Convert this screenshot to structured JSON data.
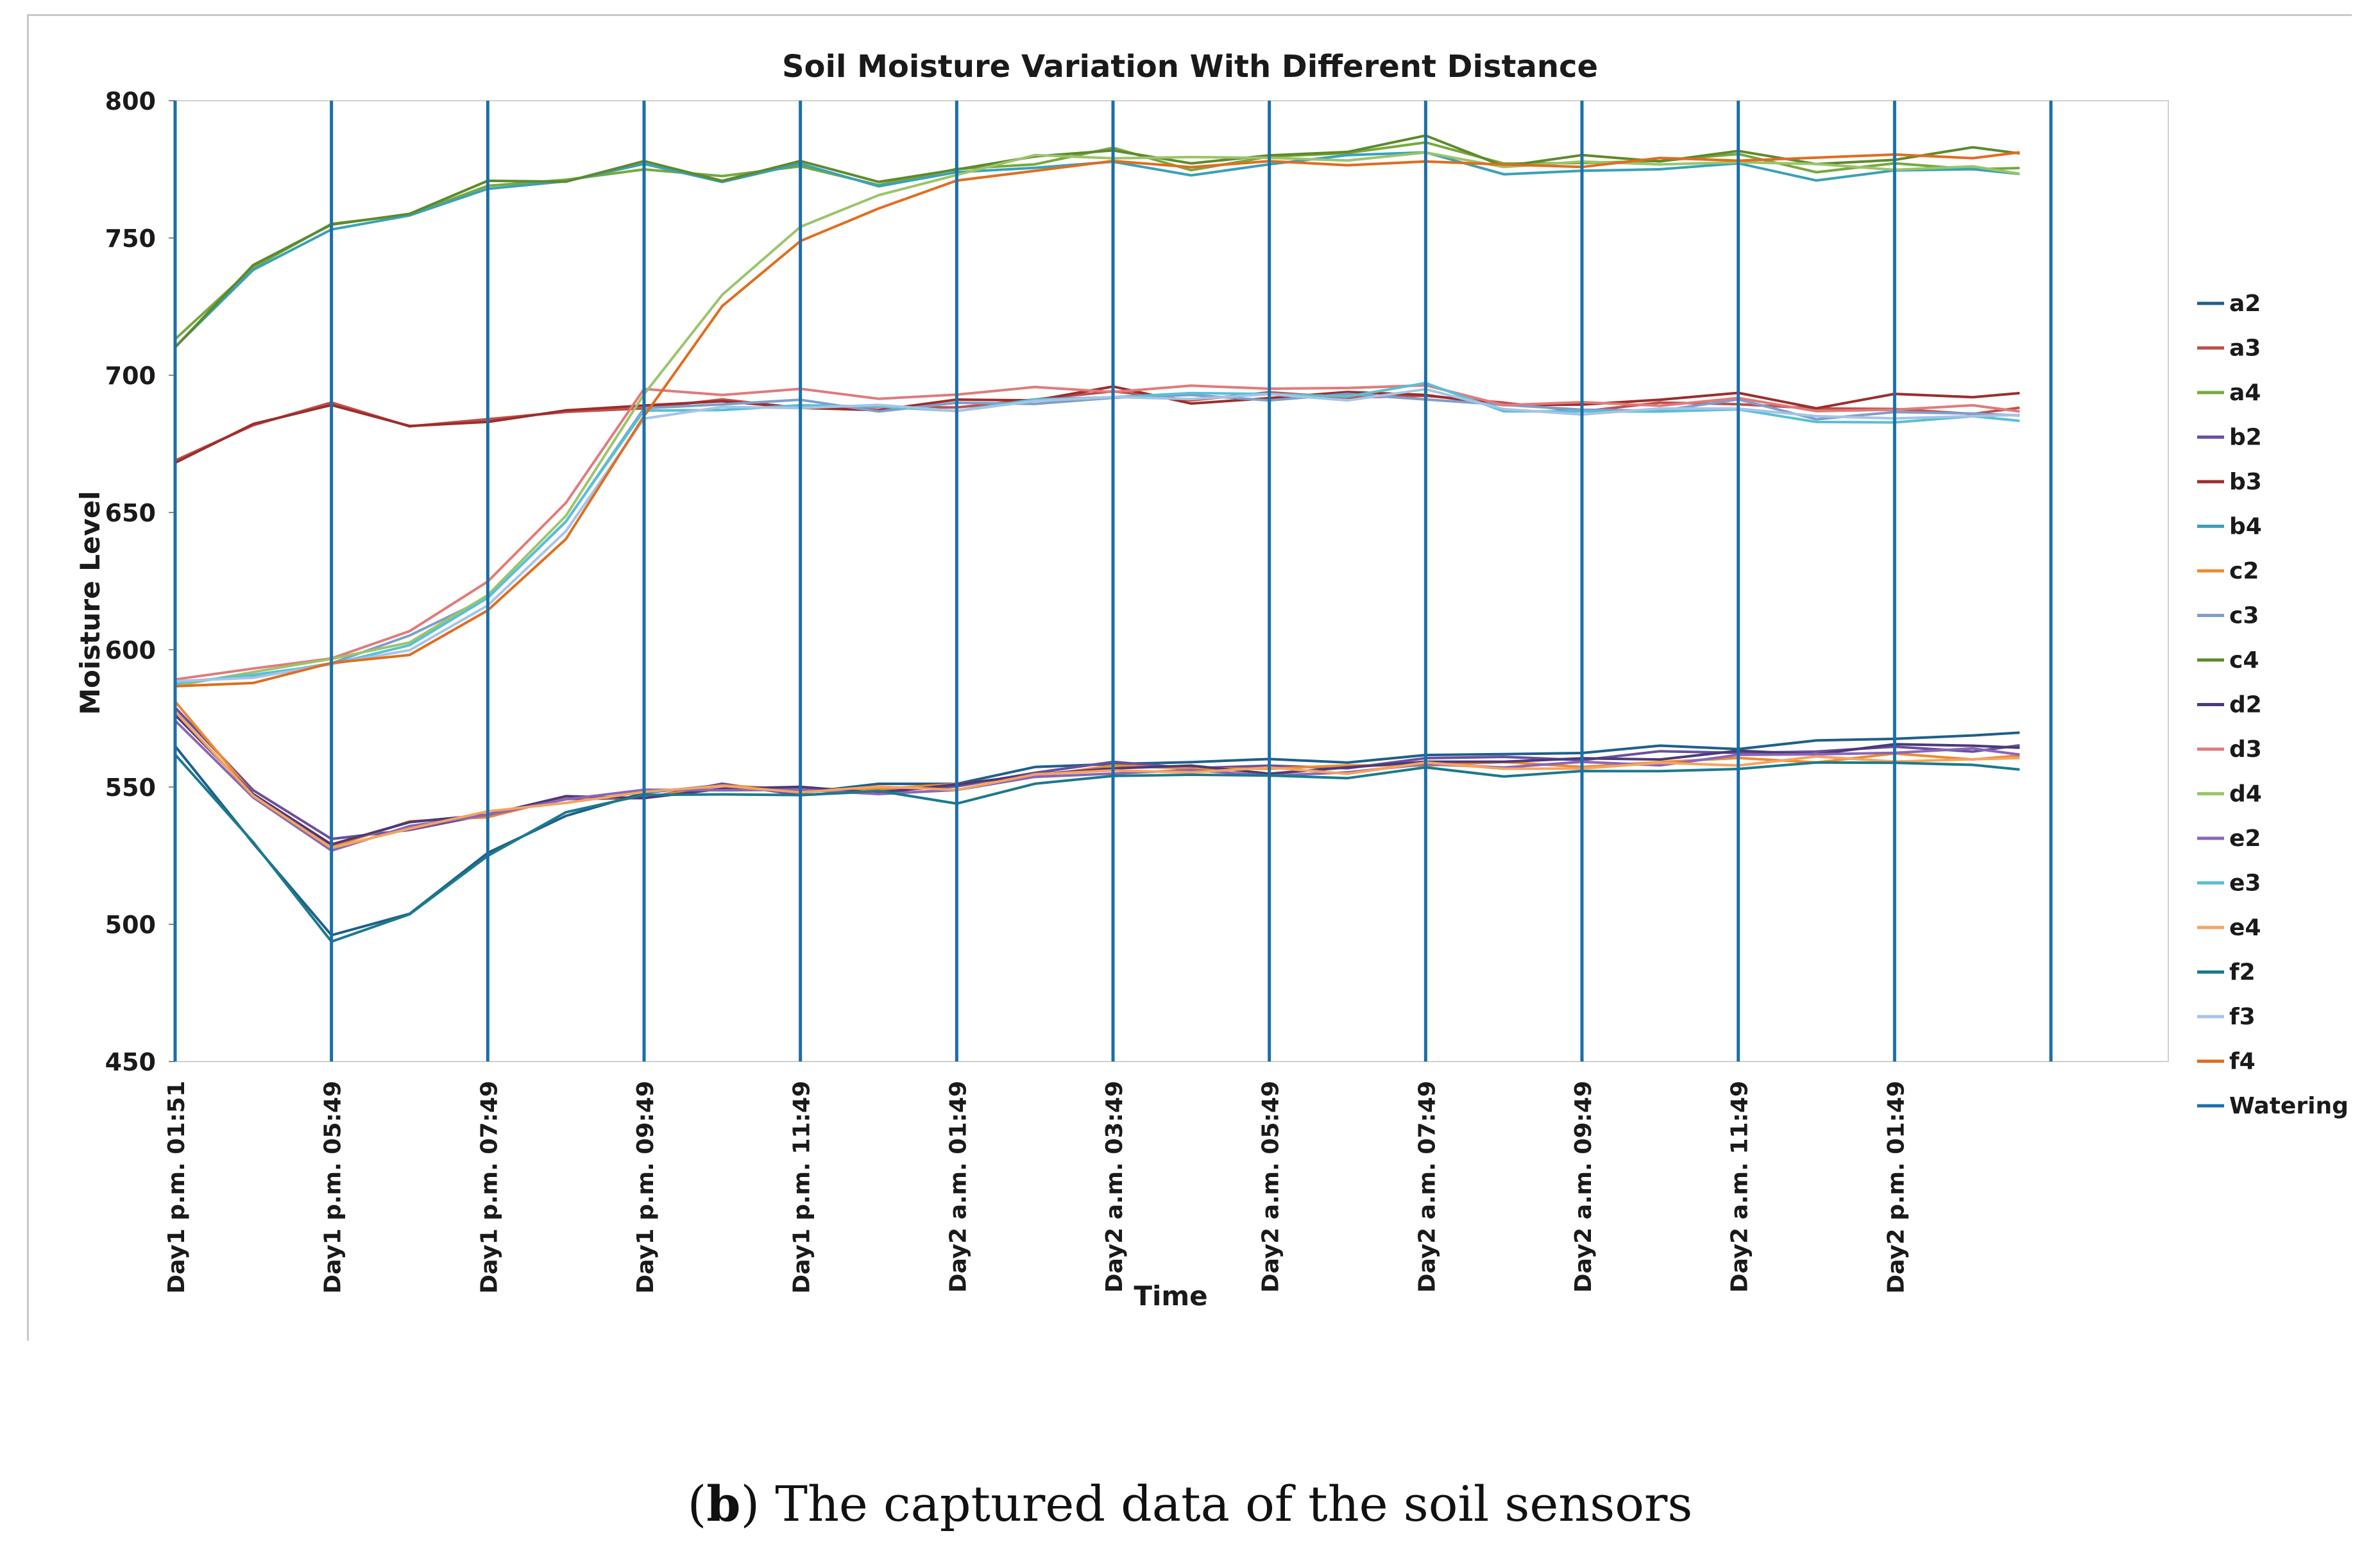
{
  "caption": {
    "open": "(",
    "letter": "b",
    "text": ") The captured data of the soil sensors"
  },
  "chart_data": {
    "type": "line",
    "title": "Soil Moisture Variation With  Different Distance",
    "xlabel": "Time",
    "ylabel": "Moisture Level",
    "ylim": [
      450,
      800
    ],
    "yticks": [
      450,
      500,
      550,
      600,
      650,
      700,
      750,
      800
    ],
    "categories": [
      "Day1 p.m. 01:51",
      "Day1 p.m. 05:49",
      "Day1 p.m. 07:49",
      "Day1 p.m. 09:49",
      "Day1 p.m. 11:49",
      "Day2 a.m. 01:49",
      "Day2 a.m. 03:49",
      "Day2 a.m. 05:49",
      "Day2 a.m. 07:49",
      "Day2 a.m. 09:49",
      "Day2 a.m. 11:49",
      "Day2 p.m. 01:49"
    ],
    "x": [
      0,
      0.5,
      1,
      1.5,
      2,
      2.5,
      3,
      3.5,
      4,
      4.5,
      5,
      5.5,
      6,
      6.5,
      7,
      7.5,
      8,
      8.5,
      9,
      9.5,
      10,
      10.5,
      11,
      11.5,
      11.8
    ],
    "watering_x": [
      0,
      1,
      2,
      3,
      4,
      5,
      6,
      7,
      8,
      9,
      10,
      11,
      12
    ],
    "legend_position": "right",
    "series": [
      {
        "name": "a2",
        "color": "#1f5f8b",
        "values": [
          565,
          530,
          495,
          505,
          525,
          540,
          548,
          550,
          549,
          550,
          552,
          557,
          558,
          560,
          559,
          560,
          561,
          562,
          563,
          564,
          565,
          566,
          568,
          569,
          569
        ]
      },
      {
        "name": "a3",
        "color": "#c0504d",
        "values": [
          668,
          683,
          689,
          682,
          684,
          686,
          689,
          690,
          689,
          688,
          688,
          692,
          693,
          692,
          693,
          692,
          693,
          689,
          688,
          689,
          690,
          688,
          687,
          687,
          687
        ]
      },
      {
        "name": "a4",
        "color": "#77a83d",
        "values": [
          712,
          740,
          755,
          758,
          770,
          770,
          776,
          772,
          776,
          770,
          774,
          778,
          782,
          775,
          780,
          780,
          786,
          776,
          778,
          778,
          780,
          775,
          776,
          776,
          775
        ]
      },
      {
        "name": "b2",
        "color": "#6b4f9e",
        "values": [
          578,
          550,
          530,
          535,
          540,
          545,
          547,
          550,
          548,
          548,
          550,
          556,
          558,
          558,
          557,
          557,
          561,
          560,
          561,
          562,
          563,
          563,
          564,
          564,
          564
        ]
      },
      {
        "name": "b3",
        "color": "#9b2e2c",
        "values": [
          667,
          683,
          689,
          681,
          684,
          686,
          690,
          690,
          688,
          688,
          690,
          692,
          695,
          690,
          692,
          693,
          694,
          688,
          690,
          691,
          693,
          689,
          692,
          693,
          693
        ]
      },
      {
        "name": "b4",
        "color": "#3aa1b8",
        "values": [
          710,
          738,
          754,
          757,
          769,
          770,
          777,
          771,
          776,
          770,
          773,
          776,
          778,
          772,
          778,
          779,
          782,
          773,
          774,
          776,
          776,
          772,
          774,
          775,
          774
        ]
      },
      {
        "name": "c2",
        "color": "#ed8b2f",
        "values": [
          580,
          548,
          528,
          537,
          540,
          545,
          547,
          550,
          549,
          550,
          550,
          555,
          557,
          557,
          557,
          557,
          559,
          558,
          558,
          559,
          560,
          560,
          561,
          561,
          561
        ]
      },
      {
        "name": "c3",
        "color": "#7f9ec9",
        "values": [
          588,
          590,
          596,
          604,
          620,
          646,
          688,
          690,
          690,
          688,
          689,
          690,
          692,
          692,
          692,
          692,
          692,
          689,
          687,
          688,
          690,
          685,
          686,
          686,
          686
        ]
      },
      {
        "name": "c4",
        "color": "#5e8a2c",
        "values": [
          711,
          739,
          756,
          758,
          771,
          771,
          777,
          772,
          777,
          771,
          775,
          779,
          783,
          776,
          781,
          781,
          787,
          777,
          779,
          779,
          781,
          777,
          779,
          782,
          782
        ]
      },
      {
        "name": "d2",
        "color": "#4b3a78",
        "values": [
          576,
          547,
          530,
          536,
          541,
          546,
          546,
          550,
          549,
          549,
          550,
          555,
          557,
          557,
          556,
          556,
          560,
          559,
          560,
          561,
          562,
          563,
          565,
          565,
          565
        ]
      },
      {
        "name": "d3",
        "color": "#e07b7b",
        "values": [
          590,
          592,
          598,
          606,
          625,
          654,
          694,
          694,
          694,
          692,
          693,
          695,
          695,
          695,
          696,
          695,
          696,
          690,
          689,
          690,
          691,
          687,
          688,
          688,
          688
        ]
      },
      {
        "name": "d4",
        "color": "#9bc46b",
        "values": [
          588,
          591,
          597,
          603,
          619,
          650,
          692,
          730,
          754,
          765,
          774,
          779,
          780,
          779,
          779,
          779,
          780,
          777,
          777,
          777,
          778,
          776,
          776,
          775,
          774
        ]
      },
      {
        "name": "e2",
        "color": "#8a67b8",
        "values": [
          575,
          545,
          528,
          535,
          540,
          546,
          548,
          550,
          548,
          548,
          549,
          553,
          556,
          555,
          555,
          555,
          558,
          558,
          558,
          559,
          561,
          562,
          563,
          563,
          563
        ]
      },
      {
        "name": "e3",
        "color": "#58c0d6",
        "values": [
          589,
          590,
          595,
          602,
          618,
          648,
          686,
          688,
          689,
          688,
          688,
          690,
          693,
          693,
          693,
          693,
          696,
          688,
          686,
          687,
          688,
          682,
          684,
          684,
          684
        ]
      },
      {
        "name": "e4",
        "color": "#f5a460",
        "values": [
          578,
          547,
          527,
          536,
          540,
          545,
          548,
          550,
          549,
          549,
          550,
          554,
          556,
          556,
          556,
          556,
          558,
          557,
          557,
          558,
          559,
          560,
          560,
          560,
          560
        ]
      },
      {
        "name": "f2",
        "color": "#1b7a8c",
        "values": [
          563,
          529,
          494,
          504,
          524,
          542,
          546,
          548,
          547,
          548,
          545,
          550,
          555,
          554,
          554,
          554,
          556,
          555,
          555,
          556,
          557,
          558,
          560,
          557,
          557
        ]
      },
      {
        "name": "f3",
        "color": "#a6c4e6",
        "values": [
          589,
          590,
          594,
          601,
          615,
          644,
          684,
          688,
          689,
          688,
          688,
          690,
          692,
          692,
          692,
          692,
          694,
          688,
          686,
          687,
          689,
          684,
          685,
          685,
          685
        ]
      },
      {
        "name": "f4",
        "color": "#e06d1f",
        "values": [
          586,
          589,
          594,
          599,
          614,
          640,
          686,
          724,
          750,
          760,
          771,
          775,
          777,
          777,
          777,
          777,
          778,
          776,
          777,
          778,
          779,
          779,
          780,
          780,
          780
        ]
      }
    ],
    "watering": {
      "name": "Watering",
      "color": "#1a6fa8"
    }
  }
}
